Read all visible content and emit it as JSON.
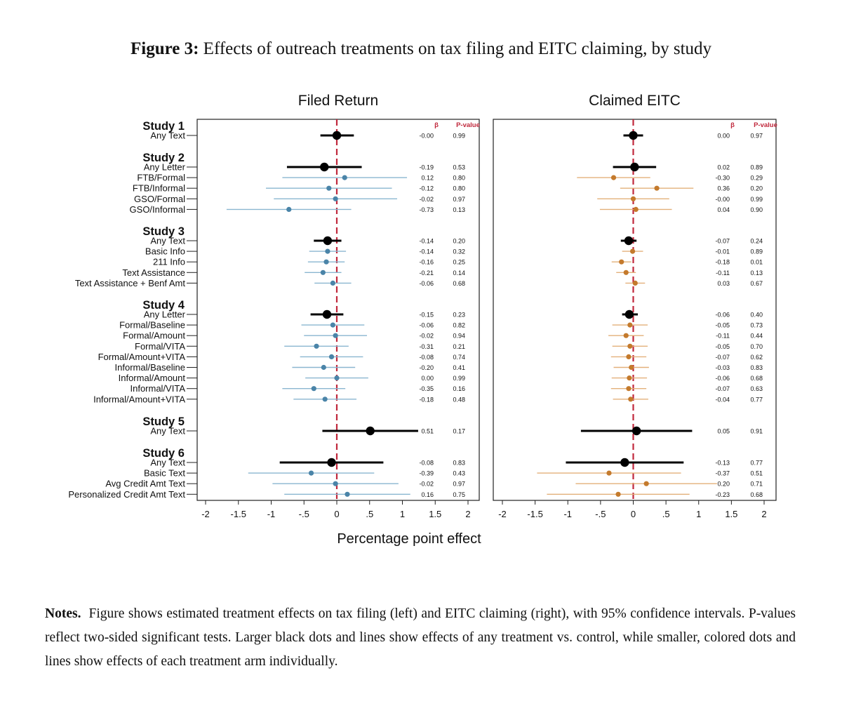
{
  "figure": {
    "label": "Figure 3:",
    "title": "Effects of outreach treatments on tax filing and EITC claiming, by study"
  },
  "notes": {
    "label": "Notes.",
    "text": "Figure shows estimated treatment effects on tax filing (left) and EITC claiming (right), with 95% confidence intervals. P-values reflect two-sided significant tests. Larger black dots and lines show effects of any treatment vs. control, while smaller, colored dots and lines show effects of each treatment arm individually."
  },
  "chart_data": {
    "type": "scatter",
    "subtype": "coefficient-plot",
    "xlabel": "Percentage point effect",
    "xlim": [
      -2,
      2
    ],
    "x_ticks": [
      -2,
      -1.5,
      -1,
      -0.5,
      0,
      0.5,
      1,
      1.5,
      2
    ],
    "x_tick_labels": [
      "-2",
      "-1.5",
      "-1",
      "-.5",
      "0",
      ".5",
      "1",
      "1.5",
      "2"
    ],
    "reference_line": 0,
    "colors": {
      "overall": "#000000",
      "filed_arm": "#4a84a8",
      "filed_ci": "#8ab6d0",
      "eitc_arm": "#c47a2c",
      "eitc_ci": "#e3b07a",
      "reference": "#c0283c",
      "column_header": "#c0283c"
    },
    "column_headers": {
      "beta": "β",
      "p": "P-value"
    },
    "panels": [
      {
        "key": "filed",
        "title": "Filed Return"
      },
      {
        "key": "eitc",
        "title": "Claimed EITC"
      }
    ],
    "groups": [
      {
        "study": "Study 1",
        "rows": [
          {
            "label": "Any Text",
            "overall": true,
            "filed": {
              "est": 0.0,
              "lo": -0.25,
              "hi": 0.26,
              "beta": "-0.00",
              "p": "0.99"
            },
            "eitc": {
              "est": 0.0,
              "lo": -0.15,
              "hi": 0.15,
              "beta": "0.00",
              "p": "0.97"
            }
          }
        ]
      },
      {
        "study": "Study 2",
        "rows": [
          {
            "label": "Any Letter",
            "overall": true,
            "filed": {
              "est": -0.19,
              "lo": -0.76,
              "hi": 0.38,
              "beta": "-0.19",
              "p": "0.53"
            },
            "eitc": {
              "est": 0.02,
              "lo": -0.31,
              "hi": 0.35,
              "beta": "0.02",
              "p": "0.89"
            }
          },
          {
            "label": "FTB/Formal",
            "overall": false,
            "filed": {
              "est": 0.12,
              "lo": -0.83,
              "hi": 1.07,
              "beta": "0.12",
              "p": "0.80"
            },
            "eitc": {
              "est": -0.3,
              "lo": -0.86,
              "hi": 0.26,
              "beta": "-0.30",
              "p": "0.29"
            }
          },
          {
            "label": "FTB/Informal",
            "overall": false,
            "filed": {
              "est": -0.12,
              "lo": -1.08,
              "hi": 0.84,
              "beta": "-0.12",
              "p": "0.80"
            },
            "eitc": {
              "est": 0.36,
              "lo": -0.2,
              "hi": 0.92,
              "beta": "0.36",
              "p": "0.20"
            }
          },
          {
            "label": "GSO/Formal",
            "overall": false,
            "filed": {
              "est": -0.02,
              "lo": -0.96,
              "hi": 0.92,
              "beta": "-0.02",
              "p": "0.97"
            },
            "eitc": {
              "est": -0.0,
              "lo": -0.55,
              "hi": 0.55,
              "beta": "-0.00",
              "p": "0.99"
            }
          },
          {
            "label": "GSO/Informal",
            "overall": false,
            "filed": {
              "est": -0.73,
              "lo": -1.68,
              "hi": 0.22,
              "beta": "-0.73",
              "p": "0.13"
            },
            "eitc": {
              "est": 0.04,
              "lo": -0.51,
              "hi": 0.59,
              "beta": "0.04",
              "p": "0.90"
            }
          }
        ]
      },
      {
        "study": "Study 3",
        "rows": [
          {
            "label": "Any Text",
            "overall": true,
            "filed": {
              "est": -0.14,
              "lo": -0.35,
              "hi": 0.07,
              "beta": "-0.14",
              "p": "0.20"
            },
            "eitc": {
              "est": -0.07,
              "lo": -0.19,
              "hi": 0.05,
              "beta": "-0.07",
              "p": "0.24"
            }
          },
          {
            "label": "Basic Info",
            "overall": false,
            "filed": {
              "est": -0.14,
              "lo": -0.42,
              "hi": 0.14,
              "beta": "-0.14",
              "p": "0.32"
            },
            "eitc": {
              "est": -0.01,
              "lo": -0.17,
              "hi": 0.15,
              "beta": "-0.01",
              "p": "0.89"
            }
          },
          {
            "label": "211 Info",
            "overall": false,
            "filed": {
              "est": -0.16,
              "lo": -0.44,
              "hi": 0.12,
              "beta": "-0.16",
              "p": "0.25"
            },
            "eitc": {
              "est": -0.18,
              "lo": -0.33,
              "hi": -0.03,
              "beta": "-0.18",
              "p": "0.01"
            }
          },
          {
            "label": "Text Assistance",
            "overall": false,
            "filed": {
              "est": -0.21,
              "lo": -0.49,
              "hi": 0.07,
              "beta": "-0.21",
              "p": "0.14"
            },
            "eitc": {
              "est": -0.11,
              "lo": -0.26,
              "hi": 0.04,
              "beta": "-0.11",
              "p": "0.13"
            }
          },
          {
            "label": "Text Assistance + Benf Amt",
            "overall": false,
            "filed": {
              "est": -0.06,
              "lo": -0.34,
              "hi": 0.22,
              "beta": "-0.06",
              "p": "0.68"
            },
            "eitc": {
              "est": 0.03,
              "lo": -0.12,
              "hi": 0.18,
              "beta": "0.03",
              "p": "0.67"
            }
          }
        ]
      },
      {
        "study": "Study 4",
        "rows": [
          {
            "label": "Any Letter",
            "overall": true,
            "filed": {
              "est": -0.15,
              "lo": -0.4,
              "hi": 0.1,
              "beta": "-0.15",
              "p": "0.23"
            },
            "eitc": {
              "est": -0.06,
              "lo": -0.17,
              "hi": 0.07,
              "beta": "-0.06",
              "p": "0.40"
            }
          },
          {
            "label": "Formal/Baseline",
            "overall": false,
            "filed": {
              "est": -0.06,
              "lo": -0.54,
              "hi": 0.42,
              "beta": "-0.06",
              "p": "0.82"
            },
            "eitc": {
              "est": -0.05,
              "lo": -0.32,
              "hi": 0.22,
              "beta": "-0.05",
              "p": "0.73"
            }
          },
          {
            "label": "Formal/Amount",
            "overall": false,
            "filed": {
              "est": -0.02,
              "lo": -0.5,
              "hi": 0.46,
              "beta": "-0.02",
              "p": "0.94"
            },
            "eitc": {
              "est": -0.11,
              "lo": -0.38,
              "hi": 0.16,
              "beta": "-0.11",
              "p": "0.44"
            }
          },
          {
            "label": "Formal/VITA",
            "overall": false,
            "filed": {
              "est": -0.31,
              "lo": -0.8,
              "hi": 0.18,
              "beta": "-0.31",
              "p": "0.21"
            },
            "eitc": {
              "est": -0.05,
              "lo": -0.32,
              "hi": 0.22,
              "beta": "-0.05",
              "p": "0.70"
            }
          },
          {
            "label": "Formal/Amount+VITA",
            "overall": false,
            "filed": {
              "est": -0.08,
              "lo": -0.56,
              "hi": 0.4,
              "beta": "-0.08",
              "p": "0.74"
            },
            "eitc": {
              "est": -0.07,
              "lo": -0.34,
              "hi": 0.2,
              "beta": "-0.07",
              "p": "0.62"
            }
          },
          {
            "label": "Informal/Baseline",
            "overall": false,
            "filed": {
              "est": -0.2,
              "lo": -0.68,
              "hi": 0.28,
              "beta": "-0.20",
              "p": "0.41"
            },
            "eitc": {
              "est": -0.03,
              "lo": -0.3,
              "hi": 0.24,
              "beta": "-0.03",
              "p": "0.83"
            }
          },
          {
            "label": "Informal/Amount",
            "overall": false,
            "filed": {
              "est": 0.0,
              "lo": -0.48,
              "hi": 0.48,
              "beta": "0.00",
              "p": "0.99"
            },
            "eitc": {
              "est": -0.06,
              "lo": -0.33,
              "hi": 0.21,
              "beta": "-0.06",
              "p": "0.68"
            }
          },
          {
            "label": "Informal/VITA",
            "overall": false,
            "filed": {
              "est": -0.35,
              "lo": -0.83,
              "hi": 0.13,
              "beta": "-0.35",
              "p": "0.16"
            },
            "eitc": {
              "est": -0.07,
              "lo": -0.34,
              "hi": 0.2,
              "beta": "-0.07",
              "p": "0.63"
            }
          },
          {
            "label": "Informal/Amount+VITA",
            "overall": false,
            "filed": {
              "est": -0.18,
              "lo": -0.66,
              "hi": 0.3,
              "beta": "-0.18",
              "p": "0.48"
            },
            "eitc": {
              "est": -0.04,
              "lo": -0.31,
              "hi": 0.23,
              "beta": "-0.04",
              "p": "0.77"
            }
          }
        ]
      },
      {
        "study": "Study 5",
        "rows": [
          {
            "label": "Any Text",
            "overall": true,
            "filed": {
              "est": 0.51,
              "lo": -0.22,
              "hi": 1.24,
              "beta": "0.51",
              "p": "0.17"
            },
            "eitc": {
              "est": 0.05,
              "lo": -0.8,
              "hi": 0.9,
              "beta": "0.05",
              "p": "0.91"
            }
          }
        ]
      },
      {
        "study": "Study 6",
        "rows": [
          {
            "label": "Any Text",
            "overall": true,
            "filed": {
              "est": -0.08,
              "lo": -0.87,
              "hi": 0.71,
              "beta": "-0.08",
              "p": "0.83"
            },
            "eitc": {
              "est": -0.13,
              "lo": -1.03,
              "hi": 0.77,
              "beta": "-0.13",
              "p": "0.77"
            }
          },
          {
            "label": "Basic Text",
            "overall": false,
            "filed": {
              "est": -0.39,
              "lo": -1.35,
              "hi": 0.57,
              "beta": "-0.39",
              "p": "0.43"
            },
            "eitc": {
              "est": -0.37,
              "lo": -1.47,
              "hi": 0.73,
              "beta": "-0.37",
              "p": "0.51"
            }
          },
          {
            "label": "Avg Credit Amt Text",
            "overall": false,
            "filed": {
              "est": -0.02,
              "lo": -0.98,
              "hi": 0.94,
              "beta": "-0.02",
              "p": "0.97"
            },
            "eitc": {
              "est": 0.2,
              "lo": -0.88,
              "hi": 1.28,
              "beta": "0.20",
              "p": "0.71"
            }
          },
          {
            "label": "Personalized Credit Amt Text",
            "overall": false,
            "filed": {
              "est": 0.16,
              "lo": -0.8,
              "hi": 1.12,
              "beta": "0.16",
              "p": "0.75"
            },
            "eitc": {
              "est": -0.23,
              "lo": -1.32,
              "hi": 0.86,
              "beta": "-0.23",
              "p": "0.68"
            }
          }
        ]
      }
    ]
  }
}
